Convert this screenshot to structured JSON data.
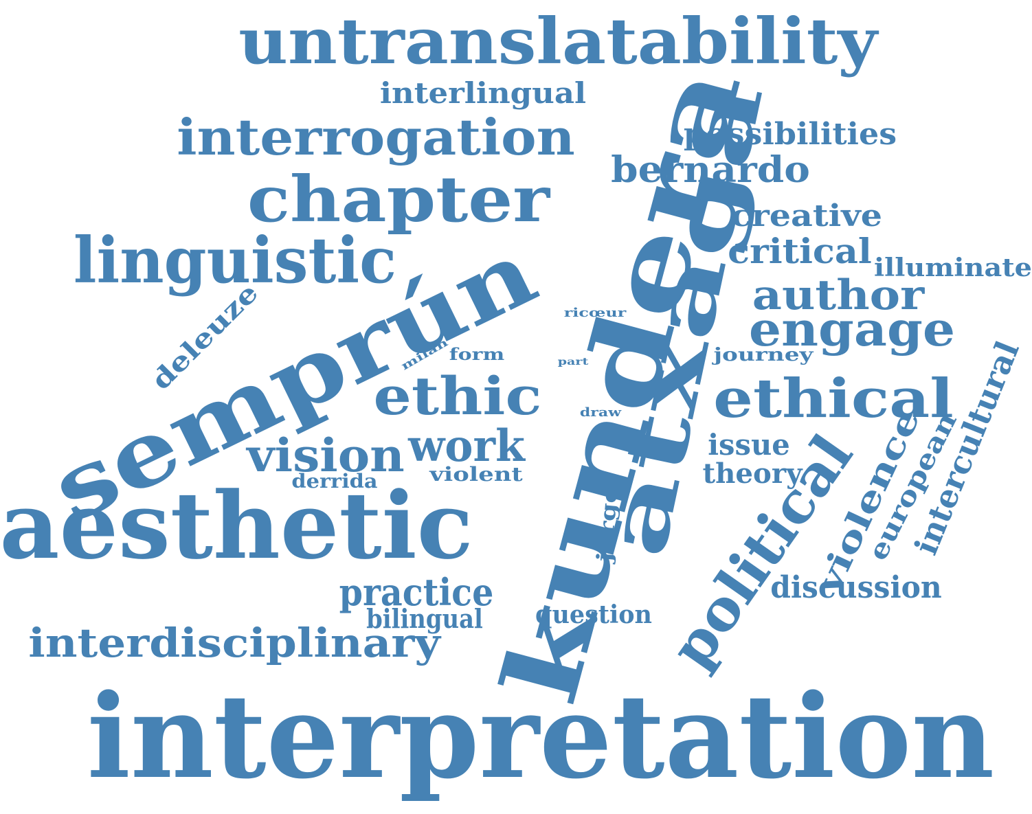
{
  "color": "#4682b4",
  "words": [
    "untranslatability",
    "interlingual",
    "interrogation",
    "possibilities",
    "bernardo",
    "chapter",
    "creative",
    "linguistic",
    "critical",
    "illuminate",
    "author",
    "engage",
    "ricœur",
    "deleuze",
    "milan",
    "form",
    "part",
    "journey",
    "semprún",
    "ethic",
    "ethical",
    "draw",
    "kundera",
    "atxaga",
    "intercultural",
    "vision",
    "work",
    "issue",
    "european",
    "violence",
    "derrida",
    "violent",
    "theory",
    "aesthetic",
    "jorge",
    "political",
    "discussion",
    "practice",
    "bilingual",
    "question",
    "interdisciplinary",
    "interpretation"
  ]
}
